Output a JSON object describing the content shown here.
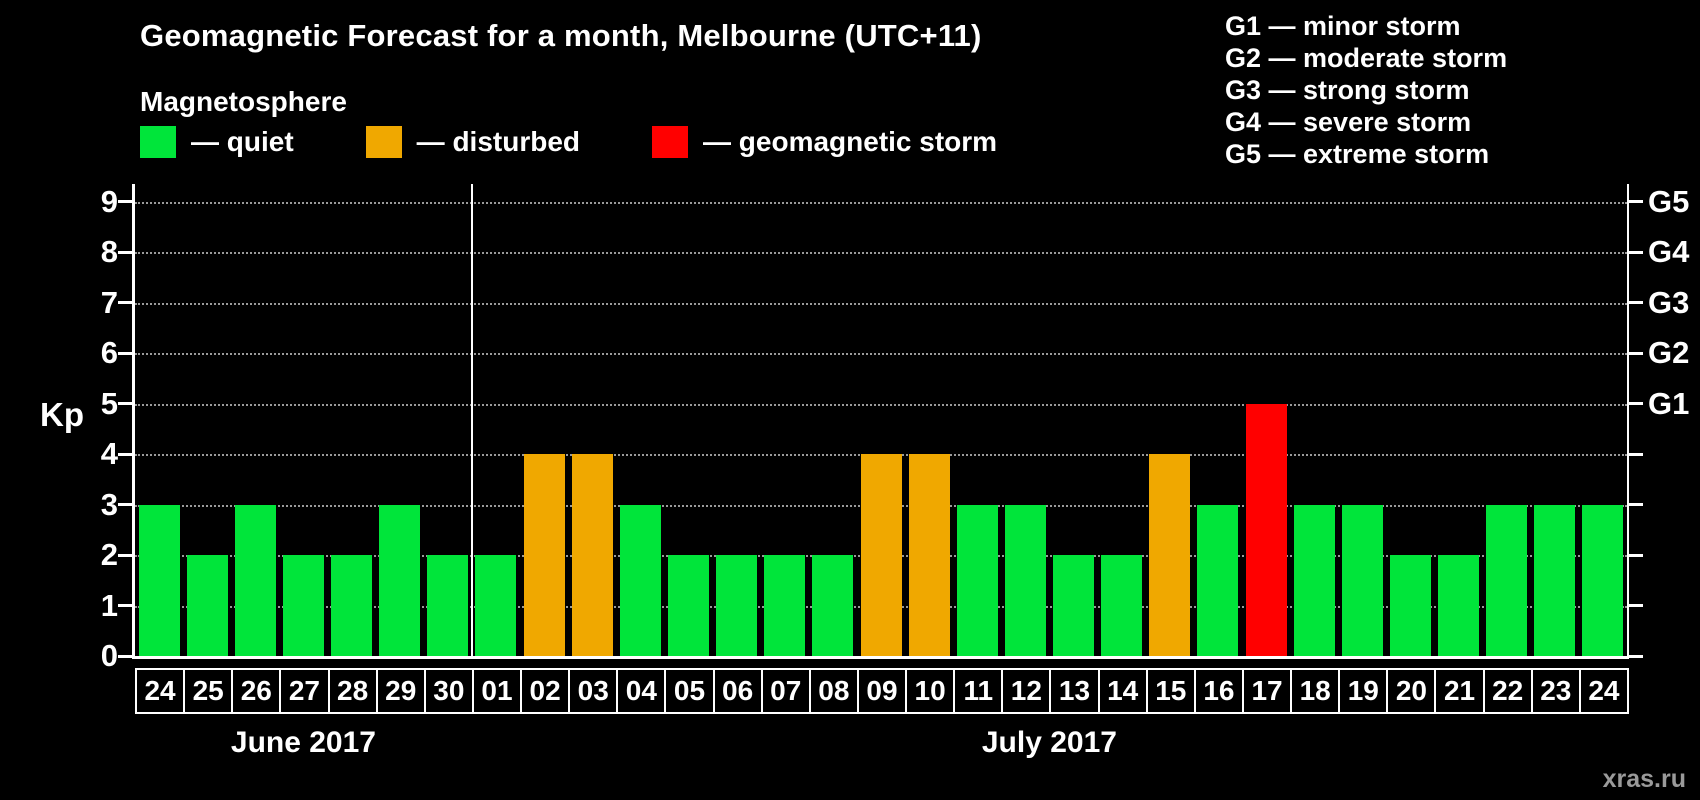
{
  "header": {
    "title": "Geomagnetic Forecast for a month, Melbourne (UTC+11)",
    "subtitle": "Magnetosphere"
  },
  "legend": {
    "items": [
      {
        "name": "quiet",
        "label": "— quiet",
        "color": "#00e53a"
      },
      {
        "name": "disturbed",
        "label": "— disturbed",
        "color": "#f0a800"
      },
      {
        "name": "storm",
        "label": "— geomagnetic storm",
        "color": "#ff0000"
      }
    ]
  },
  "g_scale": {
    "items": [
      {
        "label": "G1 — minor storm",
        "kp": 5
      },
      {
        "label": "G2 — moderate storm",
        "kp": 6
      },
      {
        "label": "G3 — strong storm",
        "kp": 7
      },
      {
        "label": "G4 — severe storm",
        "kp": 8
      },
      {
        "label": "G5 — extreme storm",
        "kp": 9
      }
    ]
  },
  "watermark": "xras.ru",
  "chart_data": {
    "type": "bar",
    "title": "Geomagnetic Forecast for a month, Melbourne (UTC+11)",
    "ylabel": "Kp",
    "ylim": [
      0,
      9
    ],
    "yticks": [
      0,
      1,
      2,
      3,
      4,
      5,
      6,
      7,
      8,
      9
    ],
    "grid": "dotted horizontal",
    "right_axis": [
      {
        "kp": 5,
        "label": "G1"
      },
      {
        "kp": 6,
        "label": "G2"
      },
      {
        "kp": 7,
        "label": "G3"
      },
      {
        "kp": 8,
        "label": "G4"
      },
      {
        "kp": 9,
        "label": "G5"
      }
    ],
    "status_colors": {
      "quiet": "#00e53a",
      "disturbed": "#f0a800",
      "storm": "#ff0000"
    },
    "months": [
      {
        "label": "June 2017",
        "days": [
          {
            "day": "24",
            "kp": 3,
            "status": "quiet"
          },
          {
            "day": "25",
            "kp": 2,
            "status": "quiet"
          },
          {
            "day": "26",
            "kp": 3,
            "status": "quiet"
          },
          {
            "day": "27",
            "kp": 2,
            "status": "quiet"
          },
          {
            "day": "28",
            "kp": 2,
            "status": "quiet"
          },
          {
            "day": "29",
            "kp": 3,
            "status": "quiet"
          },
          {
            "day": "30",
            "kp": 2,
            "status": "quiet"
          }
        ]
      },
      {
        "label": "July 2017",
        "days": [
          {
            "day": "01",
            "kp": 2,
            "status": "quiet"
          },
          {
            "day": "02",
            "kp": 4,
            "status": "disturbed"
          },
          {
            "day": "03",
            "kp": 4,
            "status": "disturbed"
          },
          {
            "day": "04",
            "kp": 3,
            "status": "quiet"
          },
          {
            "day": "05",
            "kp": 2,
            "status": "quiet"
          },
          {
            "day": "06",
            "kp": 2,
            "status": "quiet"
          },
          {
            "day": "07",
            "kp": 2,
            "status": "quiet"
          },
          {
            "day": "08",
            "kp": 2,
            "status": "quiet"
          },
          {
            "day": "09",
            "kp": 4,
            "status": "disturbed"
          },
          {
            "day": "10",
            "kp": 4,
            "status": "disturbed"
          },
          {
            "day": "11",
            "kp": 3,
            "status": "quiet"
          },
          {
            "day": "12",
            "kp": 3,
            "status": "quiet"
          },
          {
            "day": "13",
            "kp": 2,
            "status": "quiet"
          },
          {
            "day": "14",
            "kp": 2,
            "status": "quiet"
          },
          {
            "day": "15",
            "kp": 4,
            "status": "disturbed"
          },
          {
            "day": "16",
            "kp": 3,
            "status": "quiet"
          },
          {
            "day": "17",
            "kp": 5,
            "status": "storm"
          },
          {
            "day": "18",
            "kp": 3,
            "status": "quiet"
          },
          {
            "day": "19",
            "kp": 3,
            "status": "quiet"
          },
          {
            "day": "20",
            "kp": 2,
            "status": "quiet"
          },
          {
            "day": "21",
            "kp": 2,
            "status": "quiet"
          },
          {
            "day": "22",
            "kp": 3,
            "status": "quiet"
          },
          {
            "day": "23",
            "kp": 3,
            "status": "quiet"
          },
          {
            "day": "24",
            "kp": 3,
            "status": "quiet"
          }
        ]
      }
    ]
  }
}
